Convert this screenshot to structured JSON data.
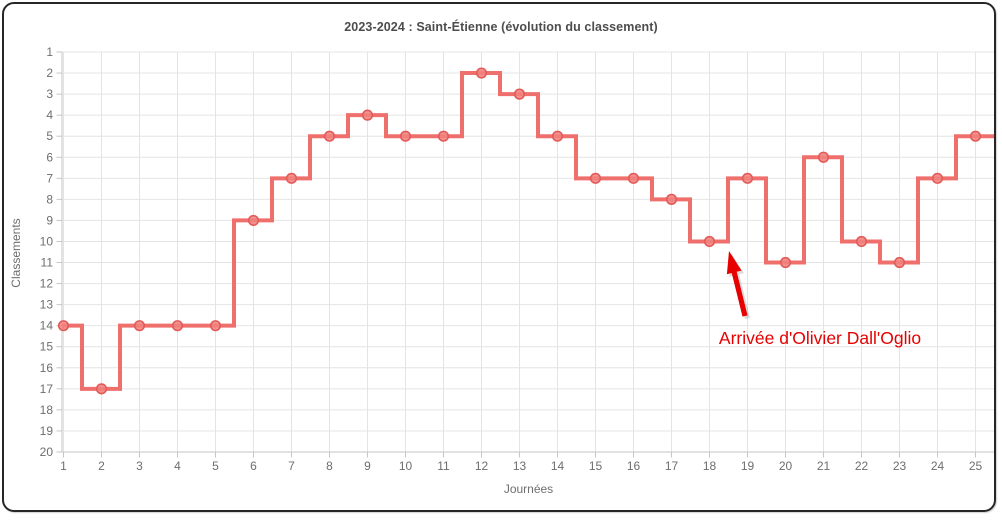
{
  "window": {
    "background": "#ffffff",
    "frame_border_color": "#262626"
  },
  "chart_data": {
    "type": "line",
    "step_style": "middle",
    "title": "2023-2024 : Saint-Étienne (évolution du classement)",
    "xlabel": "Journées",
    "ylabel": "Classements",
    "x": [
      1,
      2,
      3,
      4,
      5,
      6,
      7,
      8,
      9,
      10,
      11,
      12,
      13,
      14,
      15,
      16,
      17,
      18,
      19,
      20,
      21,
      22,
      23,
      24,
      25
    ],
    "values": [
      14,
      17,
      14,
      14,
      14,
      9,
      7,
      5,
      4,
      5,
      5,
      2,
      3,
      5,
      7,
      7,
      8,
      10,
      7,
      11,
      6,
      10,
      11,
      7,
      5
    ],
    "y_ticks": [
      1,
      2,
      3,
      4,
      5,
      6,
      7,
      8,
      9,
      10,
      11,
      12,
      13,
      14,
      15,
      16,
      17,
      18,
      19,
      20
    ],
    "xlim": [
      1,
      25
    ],
    "ylim": [
      20,
      1
    ],
    "y_axis_inverted": true,
    "grid": true,
    "legend": "none",
    "line_color": "#ef6f6c",
    "marker_fill": "#f1837f",
    "marker_ring": "#e25b58",
    "grid_color": "#e4e4e4",
    "axis_line_color": "#c6c6c6",
    "tick_label_color": "#6e6e6e",
    "annotation": {
      "text": "Arrivée d'Olivier Dall'Oglio",
      "color": "#e60000",
      "arrow_color": "#e60000",
      "points_to": "step after journée 18 (rank 10)"
    }
  }
}
